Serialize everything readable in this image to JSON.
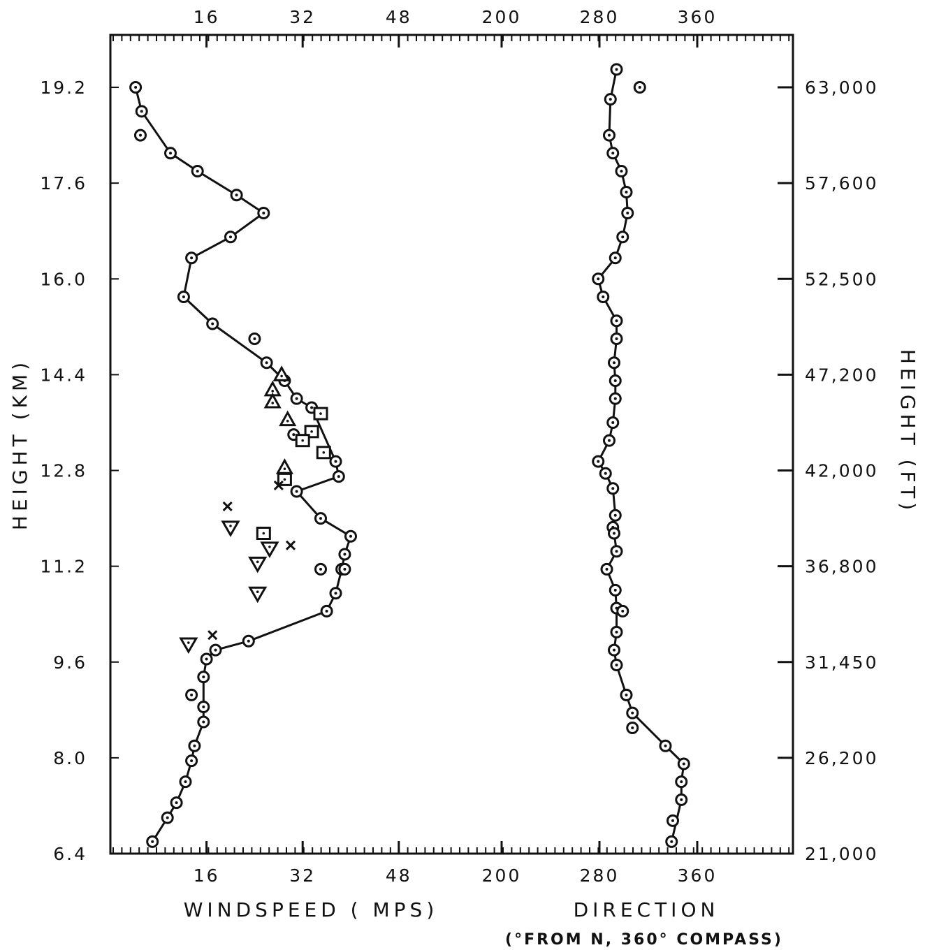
{
  "chart_data": {
    "type": "scatter",
    "y_left": {
      "label": "HEIGHT (KM)",
      "range": [
        6.4,
        20.0
      ],
      "ticks": [
        "6.4",
        "8.0",
        "9.6",
        "11.2",
        "12.8",
        "14.4",
        "16.0",
        "17.6",
        "19.2"
      ],
      "tick_values": [
        6.4,
        8.0,
        9.6,
        11.2,
        12.8,
        14.4,
        16.0,
        17.6,
        19.2
      ]
    },
    "y_right": {
      "label": "HEIGHT (FT)",
      "ticks": [
        "21,000",
        "26,200",
        "31,450",
        "36,800",
        "42,000",
        "47,200",
        "52,500",
        "57,600",
        "63,000"
      ]
    },
    "x_windspeed": {
      "label": "WINDSPEED ( MPS)",
      "range": [
        0,
        64
      ],
      "ticks_bottom": [
        "16",
        "32",
        "48"
      ],
      "ticks_top": [
        "16",
        "32",
        "48"
      ],
      "tick_values": [
        16,
        32,
        48
      ]
    },
    "x_direction": {
      "label": "DIRECTION",
      "sublabel": "(°FROM N, 360° COMPASS)",
      "range": [
        200,
        440
      ],
      "ticks_bottom": [
        "200",
        "280",
        "360"
      ],
      "ticks_top": [
        "200",
        "280",
        "360"
      ],
      "tick_values": [
        200,
        280,
        360
      ]
    },
    "series": [
      {
        "kind": "windspeed",
        "marker": "circle-dot",
        "connected": true,
        "points": [
          [
            4.2,
            19.2
          ],
          [
            5.2,
            18.8
          ],
          [
            10.0,
            18.1
          ],
          [
            14.5,
            17.8
          ],
          [
            21.0,
            17.4
          ],
          [
            25.5,
            17.1
          ],
          [
            20.0,
            16.7
          ],
          [
            13.5,
            16.35
          ],
          [
            12.2,
            15.7
          ],
          [
            17.0,
            15.25
          ],
          [
            26.0,
            14.6
          ],
          [
            29.0,
            14.3
          ],
          [
            31.0,
            14.0
          ],
          [
            33.5,
            13.85
          ],
          [
            37.5,
            12.95
          ],
          [
            38.0,
            12.7
          ],
          [
            31.0,
            12.45
          ],
          [
            35.0,
            12.0
          ],
          [
            40.0,
            11.7
          ],
          [
            39.0,
            11.4
          ],
          [
            38.5,
            11.15
          ],
          [
            37.5,
            10.75
          ],
          [
            36.0,
            10.45
          ],
          [
            23.0,
            9.95
          ],
          [
            17.5,
            9.8
          ],
          [
            16.0,
            9.65
          ],
          [
            15.5,
            9.35
          ],
          [
            15.5,
            8.85
          ],
          [
            15.5,
            8.6
          ],
          [
            14.0,
            8.2
          ],
          [
            13.5,
            7.95
          ],
          [
            12.5,
            7.6
          ],
          [
            11.0,
            7.25
          ],
          [
            9.5,
            7.0
          ],
          [
            7.0,
            6.6
          ]
        ]
      },
      {
        "kind": "windspeed",
        "marker": "circle-dot",
        "connected": false,
        "points": [
          [
            5.0,
            18.4
          ],
          [
            24.0,
            15.0
          ],
          [
            13.5,
            9.05
          ],
          [
            30.5,
            13.4
          ],
          [
            39.0,
            11.15
          ],
          [
            35.0,
            11.15
          ]
        ]
      },
      {
        "kind": "windspeed",
        "marker": "triangle-up",
        "connected": false,
        "points": [
          [
            28.5,
            14.4
          ],
          [
            27.0,
            14.15
          ],
          [
            27.0,
            13.95
          ],
          [
            29.5,
            13.65
          ],
          [
            29.0,
            12.85
          ]
        ]
      },
      {
        "kind": "windspeed",
        "marker": "square",
        "connected": false,
        "points": [
          [
            35.0,
            13.75
          ],
          [
            33.5,
            13.45
          ],
          [
            32.0,
            13.3
          ],
          [
            35.5,
            13.1
          ],
          [
            29.0,
            12.65
          ],
          [
            25.5,
            11.75
          ]
        ]
      },
      {
        "kind": "windspeed",
        "marker": "triangle-down",
        "connected": false,
        "points": [
          [
            20.0,
            11.85
          ],
          [
            26.5,
            11.5
          ],
          [
            24.5,
            11.25
          ],
          [
            24.5,
            10.75
          ],
          [
            13.0,
            9.9
          ]
        ]
      },
      {
        "kind": "windspeed",
        "marker": "x",
        "connected": false,
        "points": [
          [
            19.5,
            12.2
          ],
          [
            28.0,
            12.55
          ],
          [
            30.0,
            11.55
          ],
          [
            17.0,
            10.05
          ]
        ]
      },
      {
        "kind": "direction",
        "marker": "circle-dot",
        "connected": true,
        "points": [
          [
            294,
            19.5
          ],
          [
            289,
            19.0
          ],
          [
            288,
            18.4
          ],
          [
            291,
            18.1
          ],
          [
            298,
            17.8
          ],
          [
            302,
            17.45
          ],
          [
            303,
            17.1
          ],
          [
            299,
            16.7
          ],
          [
            293,
            16.35
          ],
          [
            279,
            16.0
          ],
          [
            283,
            15.7
          ],
          [
            294,
            15.3
          ],
          [
            294,
            15.0
          ],
          [
            292,
            14.6
          ],
          [
            293,
            14.3
          ],
          [
            293,
            14.0
          ],
          [
            291,
            13.6
          ],
          [
            288,
            13.3
          ],
          [
            279,
            12.95
          ],
          [
            285,
            12.75
          ],
          [
            291,
            12.5
          ],
          [
            293,
            12.05
          ],
          [
            291,
            11.85
          ],
          [
            292,
            11.75
          ],
          [
            294,
            11.45
          ],
          [
            286,
            11.15
          ],
          [
            293,
            10.8
          ],
          [
            294,
            10.5
          ],
          [
            294,
            10.1
          ],
          [
            292,
            9.8
          ],
          [
            294,
            9.55
          ],
          [
            302,
            9.05
          ],
          [
            307,
            8.75
          ],
          [
            334,
            8.2
          ],
          [
            349,
            7.9
          ],
          [
            347,
            7.6
          ],
          [
            347,
            7.3
          ],
          [
            339,
            6.6
          ]
        ]
      },
      {
        "kind": "direction",
        "marker": "circle-dot",
        "connected": false,
        "points": [
          [
            313,
            19.2
          ],
          [
            299,
            10.45
          ],
          [
            307,
            8.5
          ],
          [
            340,
            6.95
          ]
        ]
      }
    ]
  }
}
